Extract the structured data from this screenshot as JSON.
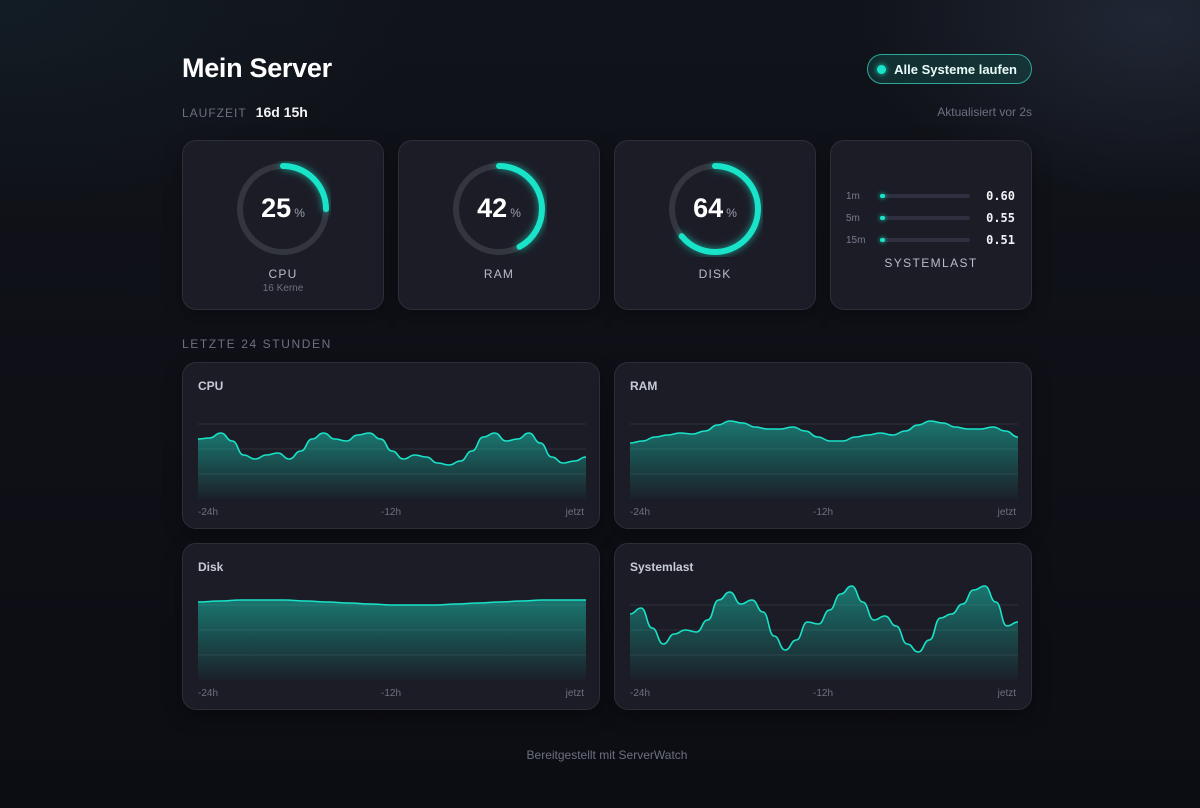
{
  "header": {
    "title": "Mein Server",
    "status": "Alle Systeme laufen",
    "uptime_label": "LAUFZEIT",
    "uptime_value": "16d 15h",
    "updated": "Aktualisiert vor 2s"
  },
  "gauges": [
    {
      "label": "CPU",
      "value": "25",
      "unit": "%",
      "sub": "16 Kerne",
      "percent": 25
    },
    {
      "label": "RAM",
      "value": "42",
      "unit": "%",
      "sub": "",
      "percent": 42
    },
    {
      "label": "DISK",
      "value": "64",
      "unit": "%",
      "sub": "",
      "percent": 64
    }
  ],
  "load": {
    "label": "SYSTEMLAST",
    "rows": [
      {
        "key": "1m",
        "value": "0.60",
        "fraction": 0.04
      },
      {
        "key": "5m",
        "value": "0.55",
        "fraction": 0.04
      },
      {
        "key": "15m",
        "value": "0.51",
        "fraction": 0.04
      }
    ]
  },
  "history": {
    "section_label": "LETZTE 24 STUNDEN",
    "ticks": [
      "-24h",
      "-12h",
      "jetzt"
    ],
    "charts": [
      {
        "title": "CPU"
      },
      {
        "title": "RAM"
      },
      {
        "title": "Disk"
      },
      {
        "title": "Systemlast"
      }
    ]
  },
  "footer": "Bereitgestellt mit ServerWatch",
  "colors": {
    "accent": "#19e3c8",
    "card": "#1b1c26",
    "background": "#0d0e14"
  },
  "icons": {
    "status": "status-dot-icon"
  }
}
